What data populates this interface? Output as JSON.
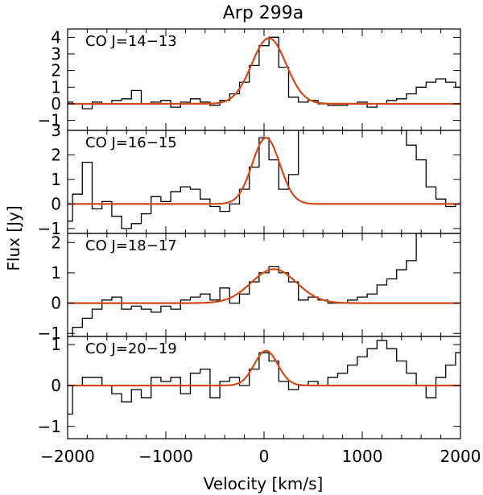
{
  "chart_data": {
    "type": "line",
    "title": "Arp 299a",
    "xlabel": "Velocity [km/s]",
    "ylabel": "Flux [Jy]",
    "xlim": [
      -2000,
      2000
    ],
    "x_ticks": [
      -2000,
      -1000,
      0,
      1000,
      2000
    ],
    "x_tick_labels": [
      "−2000",
      "−1000",
      "0",
      "1000",
      "2000"
    ],
    "fit_color": "#d44a17",
    "panels": [
      {
        "label": "CO J=14−13",
        "ylim": [
          -1.6,
          4.5
        ],
        "y_ticks": [
          -1,
          0,
          1,
          2,
          3,
          4
        ],
        "y_tick_labels": [
          "−1",
          "0",
          "1",
          "2",
          "3",
          "4"
        ],
        "fit": {
          "amplitude": 3.95,
          "center": 50,
          "sigma": 175
        },
        "spectrum": {
          "x": [
            -2000,
            -1900,
            -1800,
            -1700,
            -1600,
            -1500,
            -1400,
            -1300,
            -1200,
            -1100,
            -1000,
            -900,
            -800,
            -700,
            -600,
            -500,
            -400,
            -300,
            -200,
            -100,
            0,
            100,
            200,
            300,
            400,
            500,
            600,
            700,
            800,
            900,
            1000,
            1100,
            1200,
            1300,
            1400,
            1500,
            1600,
            1700,
            1800,
            1900,
            2000
          ],
          "flux": [
            0.1,
            0.0,
            -0.3,
            0.1,
            0.0,
            0.2,
            0.3,
            0.8,
            0.0,
            0.1,
            0.2,
            -0.2,
            0.1,
            0.3,
            0.1,
            -0.1,
            0.2,
            0.6,
            1.3,
            2.3,
            3.5,
            4.0,
            2.2,
            0.4,
            0.1,
            0.2,
            0.0,
            -0.1,
            -0.1,
            0.0,
            0.1,
            -0.2,
            0.0,
            0.2,
            0.3,
            0.6,
            1.0,
            1.3,
            1.5,
            1.3,
            1.0
          ]
        }
      },
      {
        "label": "CO J=16−15",
        "ylim": [
          -1.2,
          3.0
        ],
        "y_ticks": [
          -1,
          0,
          1,
          2,
          3
        ],
        "y_tick_labels": [
          "−1",
          "0",
          "1",
          "2",
          "3"
        ],
        "fit": {
          "amplitude": 2.7,
          "center": 20,
          "sigma": 140
        },
        "spectrum": {
          "x": [
            -2000,
            -1900,
            -1800,
            -1700,
            -1600,
            -1500,
            -1400,
            -1300,
            -1200,
            -1100,
            -1000,
            -900,
            -800,
            -700,
            -600,
            -500,
            -400,
            -300,
            -200,
            -100,
            0,
            100,
            200,
            300,
            400,
            500,
            600,
            700,
            800,
            900,
            1000,
            1100,
            1200,
            1300,
            1400,
            1500,
            1600,
            1700,
            1800,
            1900,
            2000
          ],
          "flux": [
            -0.7,
            0.4,
            1.7,
            -0.2,
            0.1,
            -0.5,
            -1.0,
            -0.8,
            -0.4,
            0.3,
            0.1,
            0.5,
            0.7,
            0.6,
            0.2,
            -0.1,
            -0.3,
            0.0,
            0.6,
            1.5,
            2.7,
            1.8,
            0.6,
            1.2,
            3.0,
            3.0,
            3.0,
            3.0,
            3.0,
            3.0,
            3.0,
            3.0,
            3.0,
            3.0,
            3.0,
            2.4,
            1.8,
            0.7,
            0.2,
            -0.1,
            0.0
          ]
        }
      },
      {
        "label": "CO J=18−17",
        "ylim": [
          -1.1,
          2.3
        ],
        "y_ticks": [
          -1,
          0,
          1,
          2
        ],
        "y_tick_labels": [
          "−1",
          "0",
          "1",
          "2"
        ],
        "fit": {
          "amplitude": 1.12,
          "center": 100,
          "sigma": 230
        },
        "spectrum": {
          "x": [
            -2000,
            -1900,
            -1800,
            -1700,
            -1600,
            -1500,
            -1400,
            -1300,
            -1200,
            -1100,
            -1000,
            -900,
            -800,
            -700,
            -600,
            -500,
            -400,
            -300,
            -200,
            -100,
            0,
            100,
            200,
            300,
            400,
            500,
            600,
            700,
            800,
            900,
            1000,
            1100,
            1200,
            1300,
            1400,
            1500,
            1600,
            1700,
            1800,
            1900,
            2000
          ],
          "flux": [
            -1.1,
            -0.8,
            -0.5,
            -0.2,
            0.1,
            0.2,
            -0.2,
            -0.1,
            -0.2,
            -0.3,
            -0.1,
            -0.2,
            0.1,
            0.2,
            0.3,
            0.1,
            0.5,
            0.0,
            0.3,
            0.7,
            1.0,
            1.2,
            1.0,
            0.7,
            0.1,
            0.2,
            0.1,
            0.0,
            0.0,
            0.1,
            0.2,
            0.3,
            0.6,
            0.8,
            1.1,
            1.4,
            2.3,
            2.3,
            2.3,
            2.3,
            2.3
          ]
        }
      },
      {
        "label": "CO J=20−19",
        "ylim": [
          -1.3,
          1.2
        ],
        "y_ticks": [
          -1,
          0,
          1
        ],
        "y_tick_labels": [
          "−1",
          "0",
          "1"
        ],
        "fit": {
          "amplitude": 0.85,
          "center": 20,
          "sigma": 120
        },
        "spectrum": {
          "x": [
            -2000,
            -1900,
            -1800,
            -1700,
            -1600,
            -1500,
            -1400,
            -1300,
            -1200,
            -1100,
            -1000,
            -900,
            -800,
            -700,
            -600,
            -500,
            -400,
            -300,
            -200,
            -100,
            0,
            100,
            200,
            300,
            400,
            500,
            600,
            700,
            800,
            900,
            1000,
            1100,
            1200,
            1300,
            1400,
            1500,
            1600,
            1700,
            1800,
            1900,
            2000
          ],
          "flux": [
            -0.7,
            0.0,
            0.2,
            0.2,
            0.0,
            -0.2,
            -0.4,
            -0.1,
            -0.3,
            0.2,
            0.1,
            0.2,
            -0.2,
            0.3,
            0.4,
            -0.3,
            0.1,
            0.2,
            0.0,
            0.4,
            0.8,
            0.6,
            0.1,
            -0.1,
            0.0,
            0.1,
            0.0,
            0.2,
            0.3,
            0.5,
            0.7,
            0.9,
            1.1,
            0.9,
            0.6,
            0.3,
            0.0,
            -0.3,
            0.2,
            0.5,
            0.8
          ]
        }
      }
    ]
  }
}
